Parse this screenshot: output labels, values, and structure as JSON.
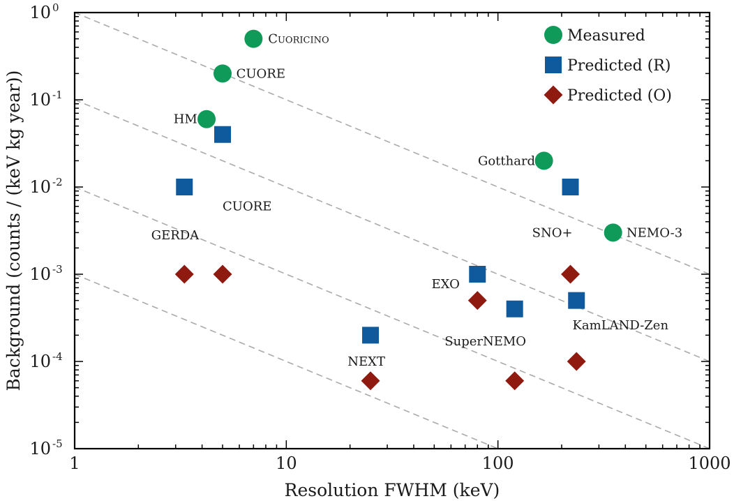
{
  "chart_data": {
    "type": "scatter",
    "title": "",
    "xlabel": "Resolution FWHM (keV)",
    "ylabel": "Background (counts / (keV kg year))",
    "xscale": "log",
    "yscale": "log",
    "xlim": [
      1,
      1000
    ],
    "ylim": [
      1e-05,
      1
    ],
    "grid": false,
    "legend_position": "top-right",
    "x_tick_labels": [
      "1",
      "10",
      "100",
      "1000"
    ],
    "y_tick_labels": [
      {
        "base": "10",
        "exp": "0"
      },
      {
        "base": "10",
        "exp": "-1"
      },
      {
        "base": "10",
        "exp": "-2"
      },
      {
        "base": "10",
        "exp": "-3"
      },
      {
        "base": "10",
        "exp": "-4"
      },
      {
        "base": "10",
        "exp": "-5"
      }
    ],
    "reference_lines": [
      {
        "x": [
          1,
          1000
        ],
        "y": [
          1,
          0.001
        ]
      },
      {
        "x": [
          1,
          1000
        ],
        "y": [
          0.1,
          0.0001
        ]
      },
      {
        "x": [
          1,
          1000
        ],
        "y": [
          0.01,
          1e-05
        ]
      },
      {
        "x": [
          1,
          100
        ],
        "y": [
          0.001,
          1e-05
        ]
      }
    ],
    "series": [
      {
        "name": "Measured",
        "marker": "circle",
        "color": "#109A5A",
        "points": [
          {
            "x": 7,
            "y": 0.5
          },
          {
            "x": 5,
            "y": 0.2
          },
          {
            "x": 4.2,
            "y": 0.06
          },
          {
            "x": 165,
            "y": 0.02
          },
          {
            "x": 350,
            "y": 0.003
          }
        ]
      },
      {
        "name": "Predicted (R)",
        "marker": "square",
        "color": "#0F5A9C",
        "points": [
          {
            "x": 5,
            "y": 0.04
          },
          {
            "x": 3.3,
            "y": 0.01
          },
          {
            "x": 220,
            "y": 0.01
          },
          {
            "x": 80,
            "y": 0.001
          },
          {
            "x": 120,
            "y": 0.0004
          },
          {
            "x": 235,
            "y": 0.0005
          },
          {
            "x": 25,
            "y": 0.0002
          }
        ]
      },
      {
        "name": "Predicted (O)",
        "marker": "diamond",
        "color": "#8E1A10",
        "points": [
          {
            "x": 3.3,
            "y": 0.001
          },
          {
            "x": 5,
            "y": 0.001
          },
          {
            "x": 80,
            "y": 0.0005
          },
          {
            "x": 220,
            "y": 0.001
          },
          {
            "x": 235,
            "y": 0.0001
          },
          {
            "x": 25,
            "y": 6e-05
          },
          {
            "x": 120,
            "y": 6e-05
          }
        ]
      }
    ],
    "annotations": [
      {
        "text": "Cuoricino",
        "x": 8.2,
        "y": 0.5,
        "anchor": "start",
        "small_caps": true
      },
      {
        "text": "CUORE",
        "x": 5.8,
        "y": 0.2,
        "anchor": "start"
      },
      {
        "text": "HM",
        "x": 3.8,
        "y": 0.06,
        "anchor": "end"
      },
      {
        "text": "CUORE",
        "x": 5.0,
        "y": 0.006,
        "anchor": "start"
      },
      {
        "text": "GERDA",
        "x": 2.3,
        "y": 0.0028,
        "anchor": "start"
      },
      {
        "text": "Gotthard",
        "x": 150,
        "y": 0.02,
        "anchor": "end"
      },
      {
        "text": "SNO+",
        "x": 145,
        "y": 0.003,
        "anchor": "start"
      },
      {
        "text": "NEMO-3",
        "x": 405,
        "y": 0.003,
        "anchor": "start"
      },
      {
        "text": "EXO",
        "x": 66,
        "y": 0.00077,
        "anchor": "end"
      },
      {
        "text": "KamLAND-Zen",
        "x": 225,
        "y": 0.00026,
        "anchor": "start"
      },
      {
        "text": "SuperNEMO",
        "x": 56,
        "y": 0.00017,
        "anchor": "start"
      },
      {
        "text": "NEXT",
        "x": 19.5,
        "y": 0.0001,
        "anchor": "start"
      }
    ]
  }
}
